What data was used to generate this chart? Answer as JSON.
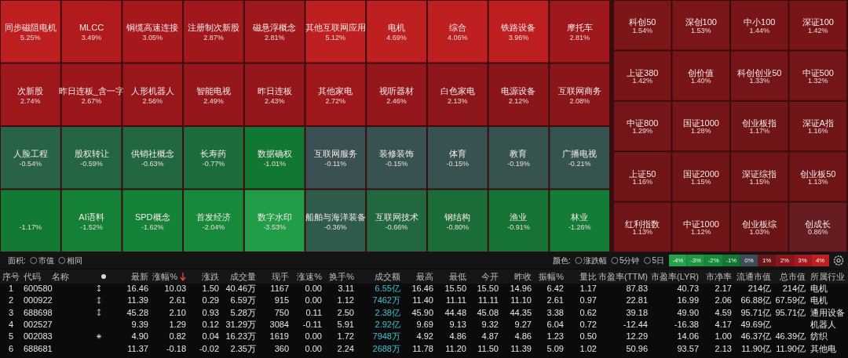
{
  "chart_data": [
    {
      "type": "other",
      "categories": [
        "同步磁阻电机",
        "MLCC",
        "铜缆高速连接",
        "注册制次新股",
        "磁悬浮概念",
        "其他互联网应用",
        "电机",
        "综合",
        "铁路设备",
        "摩托车",
        "次新股",
        "昨日连板_含一字",
        "人形机器人",
        "智能电视",
        "昨日连板",
        "其他家电",
        "视听器材",
        "白色家电",
        "电源设备",
        "互联网商务",
        "人脸工程",
        "股权转让",
        "供销社概念",
        "长寿药",
        "数据确权",
        "互联网服务",
        "装修装饰",
        "体育",
        "教育",
        "广播电视",
        null,
        "AI语料",
        "SPD概念",
        "首发经济",
        "数字水印",
        "船舶与海洋装备",
        "互联网技术",
        "钢结构",
        "渔业",
        "林业"
      ],
      "values": [
        5.25,
        3.49,
        3.05,
        2.87,
        2.81,
        5.12,
        4.69,
        4.06,
        3.96,
        2.81,
        2.74,
        2.67,
        2.56,
        2.49,
        2.43,
        2.72,
        2.46,
        2.13,
        2.12,
        2.08,
        -0.54,
        -0.59,
        -0.63,
        -0.77,
        -1.01,
        -0.11,
        -0.15,
        -0.15,
        -0.19,
        -0.21,
        -1.17,
        -1.52,
        -1.62,
        -2.04,
        -3.53,
        -0.36,
        -0.66,
        -0.8,
        -0.91,
        -1.26
      ],
      "value_labels": [
        "5.25%",
        "3.49%",
        "3.05%",
        "2.87%",
        "2.81%",
        "5.12%",
        "4.69%",
        "4.06%",
        "3.96%",
        "2.81%",
        "2.74%",
        "2.67%",
        "2.56%",
        "2.49%",
        "2.43%",
        "2.72%",
        "2.46%",
        "2.13%",
        "2.12%",
        "2.08%",
        "-0.54%",
        "-0.59%",
        "-0.63%",
        "-0.77%",
        "-1.01%",
        "-0.11%",
        "-0.15%",
        "-0.15%",
        "-0.19%",
        "-0.21%",
        "-1.17%",
        "-1.52%",
        "-1.62%",
        "-2.04%",
        "-3.53%",
        "-0.36%",
        "-0.66%",
        "-0.80%",
        "-0.91%",
        "-1.26%"
      ],
      "annotations": [
        "面积:",
        "市值",
        "相同"
      ]
    },
    {
      "type": "other",
      "categories": [
        "科创50",
        "深创100",
        "中小100",
        "深证100",
        "上证380",
        "创价值",
        "科创创业50",
        "中证500",
        "中证800",
        "国证1000",
        "创业板指",
        "深证A指",
        "上证50",
        "国证2000",
        "深证综指",
        "创业板50",
        "红利指数",
        "中证1000",
        "创业板综",
        "创成长"
      ],
      "values": [
        1.54,
        1.53,
        1.44,
        1.42,
        1.42,
        1.4,
        1.33,
        1.32,
        1.29,
        1.28,
        1.17,
        1.16,
        1.16,
        1.15,
        1.15,
        1.13,
        1.13,
        1.12,
        1.03,
        0.86
      ],
      "value_labels": [
        "1.54%",
        "1.53%",
        "1.44%",
        "1.42%",
        "1.42%",
        "1.40%",
        "1.33%",
        "1.32%",
        "1.29%",
        "1.28%",
        "1.17%",
        "1.16%",
        "1.16%",
        "1.15%",
        "1.15%",
        "1.13%",
        "1.13%",
        "1.12%",
        "1.03%",
        "0.86%"
      ],
      "annotations": [
        "颜色:",
        "涨跌幅",
        "5分钟",
        "5日"
      ]
    },
    {
      "type": "heatmap",
      "categories": [
        null,
        null,
        null,
        null,
        null,
        null,
        null,
        null,
        null
      ],
      "y_categories": [
        null
      ],
      "cells": [
        [
          -4,
          -3,
          -2,
          -1,
          0,
          1,
          2,
          3,
          4
        ]
      ],
      "cell_labels": [
        [
          "-4%",
          "-3%",
          "-2%",
          "-1%",
          "0%",
          "1%",
          "2%",
          "3%",
          "4%"
        ]
      ]
    },
    {
      "type": "other",
      "categories": [
        "序号",
        "代码",
        "名称",
        "最新",
        "涨幅%",
        "涨跌",
        "成交量",
        "现手",
        "涨速%",
        "换手%",
        "成交额",
        "最高",
        "最低",
        "今开",
        "昨收",
        "振幅%",
        "量比",
        "市盈率(TTM)",
        "市盈率(LYR)",
        "市净率",
        "流通市值",
        "总市值",
        "所属行业"
      ],
      "annotations": [
        "1",
        "600580",
        "16.46",
        "10.03",
        "1.50",
        "40.46万",
        "1167",
        "0.00",
        "3.11",
        "6.55亿",
        "16.46",
        "15.50",
        "15.50",
        "14.96",
        "6.42",
        "1.17",
        "87.83",
        "40.73",
        "2.17",
        "214亿",
        "214亿",
        "电机",
        "2",
        "000922",
        "11.39",
        "2.61",
        "0.29",
        "6.59万",
        "915",
        "0.00",
        "1.12",
        "7462万",
        "11.40",
        "11.11",
        "11.11",
        "11.10",
        "2.61",
        "0.97",
        "22.81",
        "16.99",
        "2.06",
        "66.88亿",
        "67.59亿",
        "电机",
        "3",
        "688698",
        "45.28",
        "2.10",
        "0.93",
        "5.28万",
        "750",
        "0.11",
        "2.50",
        "2.38亿",
        "45.90",
        "44.48",
        "45.08",
        "44.35",
        "3.38",
        "0.62",
        "39.18",
        "49.90",
        "4.59",
        "95.71亿",
        "95.71亿",
        "通用设备",
        "4",
        "002527",
        "9.39",
        "1.29",
        "0.12",
        "31.29万",
        "3084",
        "-0.11",
        "5.91",
        "2.92亿",
        "9.69",
        "9.13",
        "9.32",
        "9.27",
        "6.04",
        "0.72",
        "-12.44",
        "-16.38",
        "4.17",
        "49.69亿",
        null,
        "机器人",
        "5",
        "002083",
        "4.90",
        "0.82",
        "0.04",
        "16.23万",
        "1619",
        "0.00",
        "1.72",
        "7948万",
        "4.92",
        "4.86",
        "4.87",
        "4.86",
        "1.23",
        "0.50",
        "12.29",
        "14.06",
        "1.00",
        "46.37亿",
        "46.39亿",
        "纺织",
        "6",
        "688681",
        "11.37",
        "-0.18",
        "-0.02",
        "2.35万",
        "360",
        "0.00",
        "2.24",
        "2688万",
        "11.78",
        "11.20",
        "11.50",
        "11.39",
        "5.09",
        "1.02",
        "50.96",
        "93.57",
        "2.13",
        "11.90亿",
        "11.90亿",
        "其他电"
      ]
    }
  ]
}
